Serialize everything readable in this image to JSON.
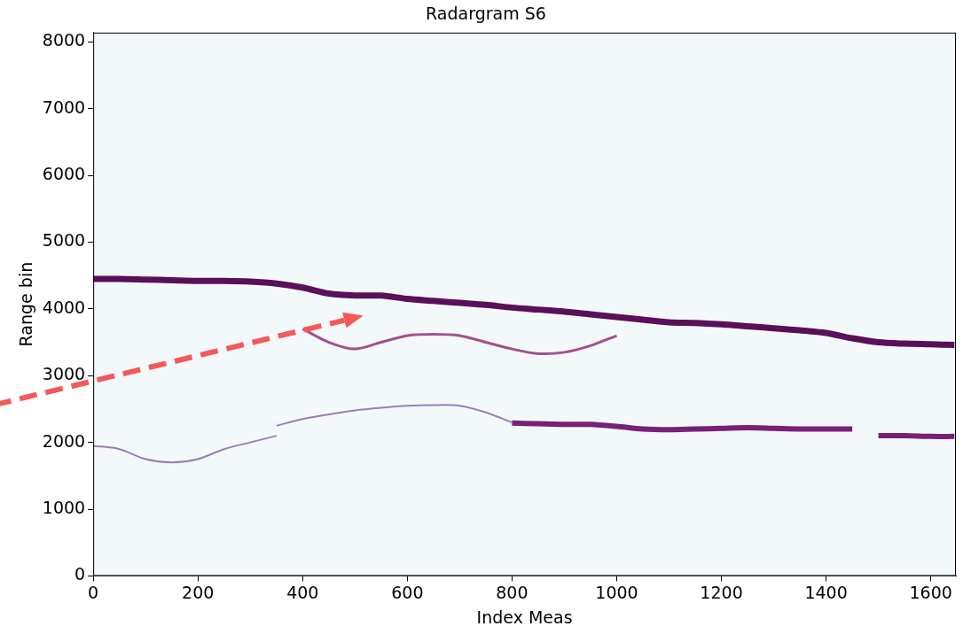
{
  "chart_data": {
    "type": "line",
    "title": "Radargram S6",
    "x_label": "Index Meas",
    "y_label": "Range bin",
    "xlim": [
      0,
      1648
    ],
    "ylim": [
      0,
      8140
    ],
    "xticks": [
      0,
      200,
      400,
      600,
      800,
      1000,
      1200,
      1400,
      1600
    ],
    "yticks": [
      0,
      1000,
      2000,
      3000,
      4000,
      5000,
      6000,
      7000,
      8000
    ],
    "grid": false,
    "x": [
      0,
      50,
      100,
      150,
      200,
      250,
      300,
      350,
      400,
      450,
      500,
      550,
      600,
      650,
      700,
      750,
      800,
      850,
      900,
      950,
      1000,
      1050,
      1100,
      1150,
      1200,
      1250,
      1300,
      1350,
      1400,
      1450,
      1500,
      1550,
      1600,
      1645
    ],
    "series": [
      {
        "color": "#9a7fb4",
        "values": [
          1950,
          1900,
          1750,
          1700,
          1750,
          1900,
          2000,
          2100,
          null,
          null,
          null,
          null,
          null,
          null,
          null,
          null,
          null,
          null,
          null,
          null,
          null,
          null,
          null,
          null,
          null,
          null,
          null,
          null,
          null,
          null,
          null,
          null,
          null,
          null
        ]
      },
      {
        "color": "#9a7fb4",
        "values": [
          null,
          null,
          null,
          null,
          null,
          null,
          null,
          2250,
          2350,
          2420,
          2480,
          2520,
          2550,
          2560,
          2550,
          2450,
          2300,
          null,
          null,
          null,
          null,
          null,
          null,
          null,
          null,
          null,
          null,
          null,
          null,
          null,
          null,
          null,
          null,
          null
        ]
      },
      {
        "color": "#a2508f",
        "values": [
          null,
          null,
          null,
          null,
          null,
          null,
          null,
          null,
          3700,
          3500,
          3400,
          3500,
          3600,
          3620,
          3600,
          3500,
          3400,
          3330,
          3350,
          3450,
          3600,
          null,
          null,
          null,
          null,
          null,
          null,
          null,
          null,
          null,
          null,
          null,
          null,
          null
        ]
      },
      {
        "color": "#7a1f78",
        "values": [
          null,
          null,
          null,
          null,
          null,
          null,
          null,
          null,
          null,
          null,
          null,
          null,
          null,
          null,
          null,
          null,
          2290,
          2280,
          2270,
          2270,
          2240,
          2200,
          2190,
          2200,
          2210,
          2220,
          2210,
          2200,
          2200,
          2200,
          null,
          null,
          null,
          null
        ]
      },
      {
        "color": "#7a1f78",
        "values": [
          null,
          null,
          null,
          null,
          null,
          null,
          null,
          null,
          null,
          null,
          null,
          null,
          null,
          null,
          null,
          null,
          null,
          null,
          null,
          null,
          null,
          null,
          null,
          null,
          null,
          null,
          null,
          null,
          null,
          null,
          2100,
          2100,
          2090,
          2090
        ]
      },
      {
        "color": "#5b0f5a",
        "values": [
          4450,
          4450,
          4440,
          4430,
          4420,
          4420,
          4410,
          4380,
          4320,
          4230,
          4200,
          4200,
          4150,
          4120,
          4090,
          4060,
          4020,
          3990,
          3960,
          3920,
          3880,
          3840,
          3800,
          3790,
          3770,
          3740,
          3710,
          3680,
          3640,
          3560,
          3500,
          3480,
          3470,
          3460
        ]
      }
    ],
    "arrow": {
      "x": [
        -190,
        516
      ],
      "y": [
        2560,
        3900
      ],
      "color": "#f25a5a",
      "line_style": "dashed"
    }
  }
}
